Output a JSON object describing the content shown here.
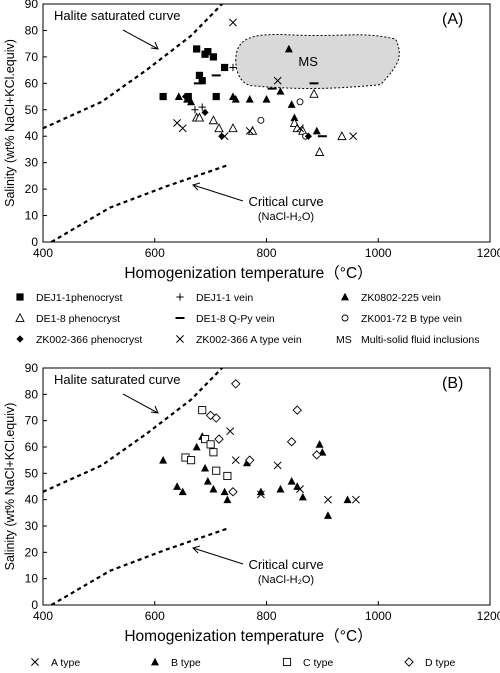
{
  "chart_data": [
    {
      "type": "scatter",
      "panel_label": "(A)",
      "xlabel": "Homogenization temperature（°C）",
      "ylabel": "Salinity (wt% NaCl+KCl.equiv)",
      "xlim": [
        400,
        1200
      ],
      "ylim": [
        0,
        90
      ],
      "xticks": [
        "400",
        "600",
        "800",
        "1000",
        "1200"
      ],
      "yticks": [
        "0",
        "10",
        "20",
        "30",
        "40",
        "50",
        "60",
        "70",
        "80",
        "90"
      ],
      "curves": [
        {
          "label": "Halite saturated curve",
          "x": [
            400,
            505,
            585,
            665,
            725
          ],
          "y": [
            43,
            53,
            65,
            78,
            91
          ]
        },
        {
          "label": "Critical curve",
          "sublabel": "(NaCl-H₂O)",
          "x": [
            415,
            520,
            620,
            730
          ],
          "y": [
            0,
            13,
            21,
            29
          ]
        }
      ],
      "region": {
        "label": "MS",
        "x": [
          745,
          1040
        ],
        "y": [
          58,
          79
        ]
      },
      "series": [
        {
          "name": "DEJ1-1phenocryst",
          "marker": "square",
          "points": [
            [
              615,
              55
            ],
            [
              660,
              55
            ],
            [
              675,
              73
            ],
            [
              690,
              71
            ],
            [
              695,
              72
            ],
            [
              705,
              70
            ],
            [
              710,
              55
            ],
            [
              725,
              66
            ],
            [
              680,
              63
            ],
            [
              685,
              61
            ]
          ]
        },
        {
          "name": "DEJ1-1 vein",
          "marker": "plus",
          "points": [
            [
              672,
              50
            ],
            [
              685,
              51
            ],
            [
              740,
              66
            ]
          ]
        },
        {
          "name": "ZK0802-225 vein",
          "marker": "triangle",
          "points": [
            [
              643,
              55
            ],
            [
              658,
              54
            ],
            [
              665,
              53
            ],
            [
              745,
              54
            ],
            [
              770,
              54
            ],
            [
              800,
              54
            ],
            [
              825,
              57
            ],
            [
              845,
              52
            ],
            [
              850,
              47
            ],
            [
              890,
              42
            ],
            [
              840,
              73
            ],
            [
              740,
              55
            ]
          ]
        },
        {
          "name": "DE1-8 phenocryst",
          "marker": "triangle-open",
          "points": [
            [
              675,
              47
            ],
            [
              680,
              47
            ],
            [
              705,
              46
            ],
            [
              715,
              43
            ],
            [
              740,
              43
            ],
            [
              775,
              42
            ],
            [
              850,
              45
            ],
            [
              855,
              43
            ],
            [
              865,
              42
            ],
            [
              885,
              56
            ],
            [
              895,
              34
            ],
            [
              935,
              40
            ]
          ]
        },
        {
          "name": "DE1-8 Q-Py vein",
          "marker": "dash",
          "points": [
            [
              678,
              60
            ],
            [
              710,
              63
            ],
            [
              810,
              58
            ],
            [
              885,
              60
            ],
            [
              900,
              40
            ]
          ]
        },
        {
          "name": "ZK001-72 B type vein",
          "marker": "circle-open",
          "points": [
            [
              790,
              46
            ],
            [
              860,
              53
            ],
            [
              870,
              40
            ]
          ]
        },
        {
          "name": "ZK002-366 phenocryst",
          "marker": "diamond",
          "points": [
            [
              655,
              55
            ],
            [
              690,
              49
            ],
            [
              720,
              40
            ],
            [
              875,
              40
            ]
          ]
        },
        {
          "name": "ZK002-366 A type vein",
          "marker": "x",
          "points": [
            [
              640,
              45
            ],
            [
              650,
              43
            ],
            [
              725,
              40
            ],
            [
              740,
              83
            ],
            [
              770,
              42
            ],
            [
              820,
              61
            ],
            [
              860,
              43
            ],
            [
              955,
              40
            ]
          ]
        }
      ],
      "legend": [
        {
          "symbol": "square",
          "label": "DEJ1-1phenocryst"
        },
        {
          "symbol": "plus",
          "label": "DEJ1-1 vein"
        },
        {
          "symbol": "triangle",
          "label": "ZK0802-225 vein"
        },
        {
          "symbol": "triangle-open",
          "label": "DE1-8 phenocryst"
        },
        {
          "symbol": "dash",
          "label": "DE1-8 Q-Py vein"
        },
        {
          "symbol": "circle-open",
          "label": "ZK001-72 B type vein"
        },
        {
          "symbol": "diamond",
          "label": "ZK002-366 phenocryst"
        },
        {
          "symbol": "x",
          "label": "ZK002-366 A type vein"
        },
        {
          "symbol": "text-MS",
          "label": "Multi-solid fluid inclusions"
        }
      ]
    },
    {
      "type": "scatter",
      "panel_label": "(B)",
      "xlabel": "Homogenization temperature（°C）",
      "ylabel": "Salinity (wt% NaCl+KCl.equiv)",
      "xlim": [
        400,
        1200
      ],
      "ylim": [
        0,
        90
      ],
      "xticks": [
        "400",
        "600",
        "800",
        "1000",
        "1200"
      ],
      "yticks": [
        "0",
        "10",
        "20",
        "30",
        "40",
        "50",
        "60",
        "70",
        "80",
        "90"
      ],
      "curves": [
        {
          "label": "Halite saturated curve",
          "x": [
            400,
            505,
            585,
            665,
            725
          ],
          "y": [
            43,
            53,
            65,
            78,
            91
          ]
        },
        {
          "label": "Critical curve",
          "sublabel": "(NaCl-H₂O)",
          "x": [
            415,
            520,
            620,
            730
          ],
          "y": [
            0,
            13,
            21,
            29
          ]
        }
      ],
      "series": [
        {
          "name": "A type",
          "marker": "x",
          "points": [
            [
              735,
              66
            ],
            [
              745,
              55
            ],
            [
              790,
              42
            ],
            [
              820,
              53
            ],
            [
              860,
              44
            ],
            [
              910,
              40
            ],
            [
              960,
              40
            ]
          ]
        },
        {
          "name": "B type",
          "marker": "triangle",
          "points": [
            [
              615,
              55
            ],
            [
              640,
              45
            ],
            [
              650,
              43
            ],
            [
              665,
              55
            ],
            [
              675,
              60
            ],
            [
              685,
              64
            ],
            [
              690,
              52
            ],
            [
              695,
              47
            ],
            [
              705,
              44
            ],
            [
              725,
              43
            ],
            [
              730,
              40
            ],
            [
              765,
              54
            ],
            [
              790,
              43
            ],
            [
              825,
              44
            ],
            [
              845,
              47
            ],
            [
              855,
              45
            ],
            [
              865,
              41
            ],
            [
              895,
              61
            ],
            [
              900,
              58
            ],
            [
              910,
              34
            ],
            [
              945,
              40
            ]
          ]
        },
        {
          "name": "C type",
          "marker": "square-open",
          "points": [
            [
              655,
              56
            ],
            [
              665,
              55
            ],
            [
              685,
              74
            ],
            [
              690,
              63
            ],
            [
              700,
              61
            ],
            [
              705,
              58
            ],
            [
              710,
              51
            ],
            [
              730,
              49
            ]
          ]
        },
        {
          "name": "D type",
          "marker": "diamond-open",
          "points": [
            [
              700,
              72
            ],
            [
              710,
              71
            ],
            [
              715,
              63
            ],
            [
              740,
              43
            ],
            [
              745,
              84
            ],
            [
              770,
              55
            ],
            [
              845,
              62
            ],
            [
              855,
              74
            ],
            [
              890,
              57
            ]
          ]
        }
      ],
      "legend": [
        {
          "symbol": "x",
          "label": "A type"
        },
        {
          "symbol": "triangle",
          "label": "B type"
        },
        {
          "symbol": "square-open",
          "label": "C type"
        },
        {
          "symbol": "diamond-open",
          "label": "D type"
        }
      ]
    }
  ]
}
